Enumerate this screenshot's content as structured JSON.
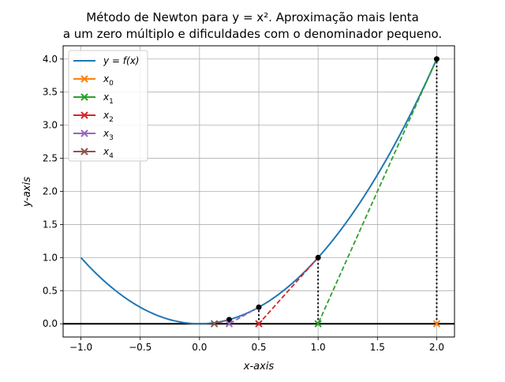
{
  "chart_data": {
    "type": "line",
    "title_line1": "Método de Newton para y = x². Aproximação mais lenta",
    "title_line2": "a um zero múltiplo e dificuldades com o denominador pequeno.",
    "xlabel": "x-axis",
    "ylabel": "y-axis",
    "xlim": [
      -1.15,
      2.15
    ],
    "ylim": [
      -0.2,
      4.2
    ],
    "xticks": [
      -1.0,
      -0.5,
      0.0,
      0.5,
      1.0,
      1.5,
      2.0
    ],
    "xtick_labels": [
      "−1.0",
      "−0.5",
      "0.0",
      "0.5",
      "1.0",
      "1.5",
      "2.0"
    ],
    "yticks": [
      0.0,
      0.5,
      1.0,
      1.5,
      2.0,
      2.5,
      3.0,
      3.5,
      4.0
    ],
    "ytick_labels": [
      "0.0",
      "0.5",
      "1.0",
      "1.5",
      "2.0",
      "2.5",
      "3.0",
      "3.5",
      "4.0"
    ],
    "grid": true,
    "legend_position": "top-left",
    "function": {
      "name": "y = f(x)",
      "expression": "x^2",
      "x_range": [
        -1.0,
        2.0
      ],
      "color": "#1f77b4"
    },
    "iterates": [
      {
        "name": "x0",
        "sub": "0",
        "x": 2.0,
        "color": "#ff7f0e"
      },
      {
        "name": "x1",
        "sub": "1",
        "x": 1.0,
        "color": "#2ca02c"
      },
      {
        "name": "x2",
        "sub": "2",
        "x": 0.5,
        "color": "#d62728"
      },
      {
        "name": "x3",
        "sub": "3",
        "x": 0.25,
        "color": "#9467bd"
      },
      {
        "name": "x4",
        "sub": "4",
        "x": 0.125,
        "color": "#8c564b"
      }
    ],
    "curve_points": [
      {
        "x": 2.0,
        "y": 4.0
      },
      {
        "x": 1.0,
        "y": 1.0
      },
      {
        "x": 0.5,
        "y": 0.25
      },
      {
        "x": 0.25,
        "y": 0.0625
      }
    ],
    "tangent_segments": [
      {
        "from": [
          2.0,
          4.0
        ],
        "to": [
          1.0,
          0.0
        ],
        "color": "#2ca02c"
      },
      {
        "from": [
          1.0,
          1.0
        ],
        "to": [
          0.5,
          0.0
        ],
        "color": "#d62728"
      },
      {
        "from": [
          0.5,
          0.25
        ],
        "to": [
          0.25,
          0.0
        ],
        "color": "#9467bd"
      },
      {
        "from": [
          0.25,
          0.0625
        ],
        "to": [
          0.125,
          0.0
        ],
        "color": "#8c564b"
      }
    ]
  }
}
